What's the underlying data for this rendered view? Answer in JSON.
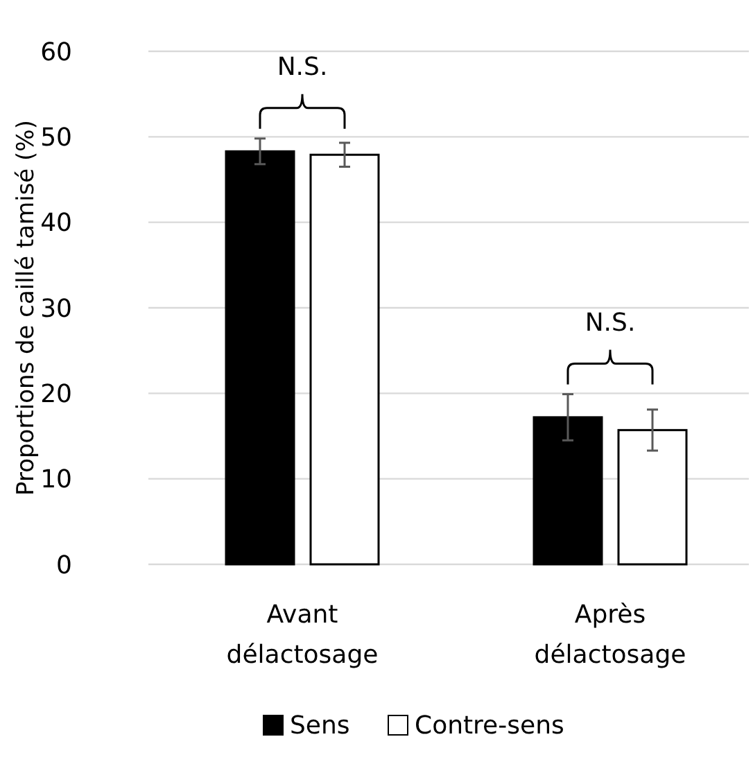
{
  "chart_data": {
    "type": "bar",
    "ylabel": "Proportions de caillé tamisé (%)",
    "categories": [
      "Avant délactosage",
      "Après délactosage"
    ],
    "series": [
      {
        "name": "Sens",
        "color": "#000000",
        "values": [
          48.3,
          17.2
        ],
        "errors": [
          1.5,
          2.7
        ]
      },
      {
        "name": "Contre-sens",
        "color": "#ffffff",
        "values": [
          47.9,
          15.7
        ],
        "errors": [
          1.4,
          2.4
        ]
      }
    ],
    "ylim": [
      0,
      60
    ],
    "yticks": [
      0,
      10,
      20,
      30,
      40,
      50,
      60
    ],
    "grid": "y",
    "legend": "bottom",
    "annotations": [
      "N.S.",
      "N.S."
    ]
  }
}
